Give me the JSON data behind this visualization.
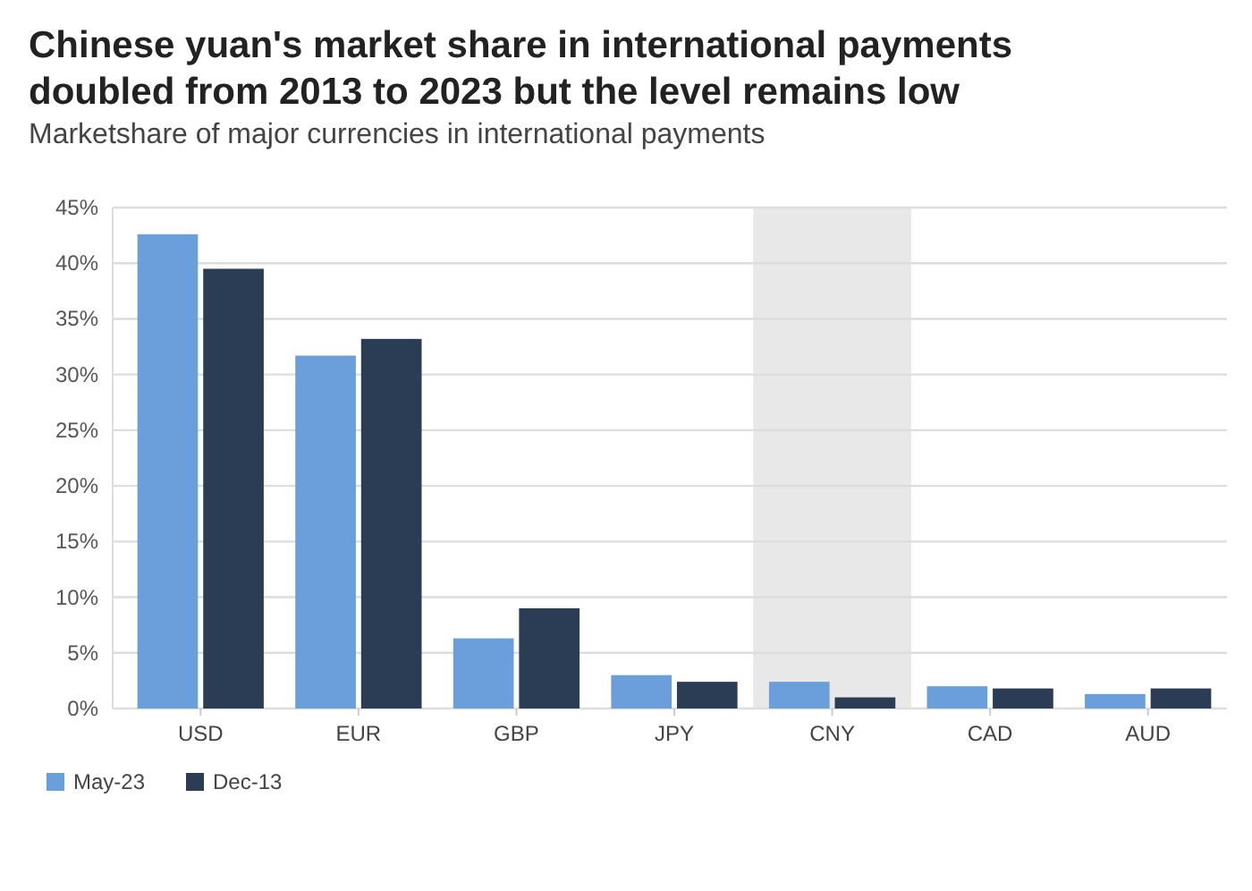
{
  "chart_data": {
    "type": "bar",
    "title": "Chinese yuan's market share in international payments doubled from 2013 to 2023 but the level remains low",
    "subtitle": "Marketshare of major currencies in international payments",
    "categories": [
      "USD",
      "EUR",
      "GBP",
      "JPY",
      "CNY",
      "CAD",
      "AUD"
    ],
    "series": [
      {
        "name": "May-23",
        "color": "#6a9fdc",
        "values": [
          42.6,
          31.7,
          6.3,
          3.0,
          2.4,
          2.0,
          1.3
        ]
      },
      {
        "name": "Dec-13",
        "color": "#2b3d55",
        "values": [
          39.5,
          33.2,
          9.0,
          2.4,
          1.0,
          1.8,
          1.8
        ]
      }
    ],
    "ylim": [
      0,
      45
    ],
    "yticks": [
      {
        "value": 0,
        "label": "0%"
      },
      {
        "value": 5,
        "label": "5%"
      },
      {
        "value": 10,
        "label": "10%"
      },
      {
        "value": 15,
        "label": "15%"
      },
      {
        "value": 20,
        "label": "20%"
      },
      {
        "value": 25,
        "label": "25%"
      },
      {
        "value": 30,
        "label": "30%"
      },
      {
        "value": 35,
        "label": "35%"
      },
      {
        "value": 40,
        "label": "40%"
      },
      {
        "value": 45,
        "label": "45%"
      }
    ],
    "bands": [
      {
        "axis": "x",
        "from": "CNY",
        "to": "CNY",
        "color": "#e8e8e8"
      }
    ],
    "grid": "y",
    "legend": "bottom left"
  }
}
